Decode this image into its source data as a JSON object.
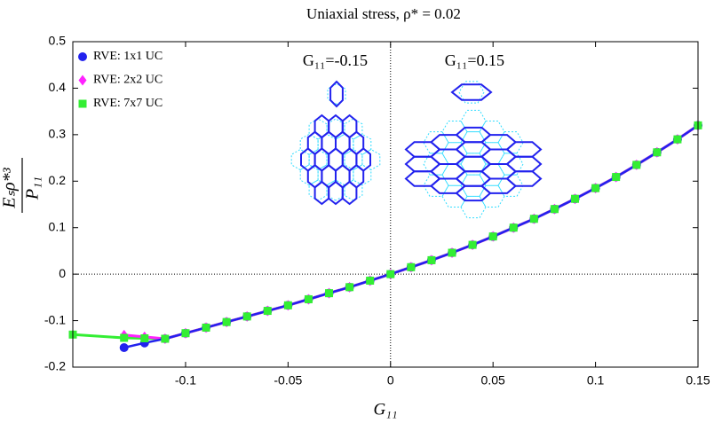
{
  "chart_data": {
    "type": "line",
    "title": "Uniaxial stress,  ρ* = 0.02",
    "xlabel": "G₁₁",
    "ylabel": {
      "numerator": "P₁₁",
      "denominator": "Eₛρ*³"
    },
    "xlim": [
      -0.155,
      0.15
    ],
    "xticks": [
      -0.1,
      -0.05,
      0,
      0.05,
      0.1,
      0.15
    ],
    "ylim": [
      -0.2,
      0.5
    ],
    "yticks": [
      -0.2,
      -0.1,
      0,
      0.1,
      0.2,
      0.3,
      0.4,
      0.5
    ],
    "zero_lines": true,
    "legend": "upper left",
    "annotations": [
      {
        "text": "G₁₁=-0.15",
        "x": -0.027
      },
      {
        "text": "G₁₁=0.15",
        "x": 0.041
      }
    ],
    "series": [
      {
        "name": "RVE: 1x1 UC",
        "color": "#2222ee",
        "marker": "circle",
        "x": [
          -0.13,
          -0.12,
          -0.11,
          -0.1,
          -0.09,
          -0.08,
          -0.07,
          -0.06,
          -0.05,
          -0.04,
          -0.03,
          -0.02,
          -0.01,
          0,
          0.01,
          0.02,
          0.03,
          0.04,
          0.05,
          0.06,
          0.07,
          0.08,
          0.09,
          0.1,
          0.11,
          0.12,
          0.13,
          0.14,
          0.15
        ],
        "values": [
          -0.158,
          -0.148,
          -0.139,
          -0.127,
          -0.115,
          -0.103,
          -0.091,
          -0.079,
          -0.067,
          -0.054,
          -0.041,
          -0.028,
          -0.014,
          0,
          0.015,
          0.03,
          0.046,
          0.063,
          0.081,
          0.1,
          0.119,
          0.14,
          0.162,
          0.185,
          0.209,
          0.235,
          0.262,
          0.29,
          0.32
        ]
      },
      {
        "name": "RVE: 2x2 UC",
        "color": "#ff22ff",
        "marker": "diamond",
        "x": [
          -0.13,
          -0.12,
          -0.11,
          -0.1,
          -0.09,
          -0.08,
          -0.07,
          -0.06,
          -0.05,
          -0.04,
          -0.03,
          -0.02,
          -0.01,
          0,
          0.01,
          0.02,
          0.03,
          0.04,
          0.05,
          0.06,
          0.07,
          0.08,
          0.09,
          0.1,
          0.11,
          0.12,
          0.13,
          0.14,
          0.15
        ],
        "values": [
          -0.131,
          -0.135,
          -0.139,
          -0.127,
          -0.115,
          -0.103,
          -0.091,
          -0.079,
          -0.067,
          -0.054,
          -0.041,
          -0.028,
          -0.014,
          0,
          0.015,
          0.03,
          0.046,
          0.063,
          0.081,
          0.1,
          0.119,
          0.14,
          0.162,
          0.185,
          0.209,
          0.235,
          0.262,
          0.29,
          0.32
        ]
      },
      {
        "name": "RVE: 7x7 UC",
        "color": "#33ee33",
        "marker": "square",
        "x": [
          -0.155,
          -0.13,
          -0.12,
          -0.11,
          -0.1,
          -0.09,
          -0.08,
          -0.07,
          -0.06,
          -0.05,
          -0.04,
          -0.03,
          -0.02,
          -0.01,
          0,
          0.01,
          0.02,
          0.03,
          0.04,
          0.05,
          0.06,
          0.07,
          0.08,
          0.09,
          0.1,
          0.11,
          0.12,
          0.13,
          0.14,
          0.15
        ],
        "values": [
          -0.13,
          -0.137,
          -0.138,
          -0.139,
          -0.127,
          -0.115,
          -0.103,
          -0.091,
          -0.079,
          -0.067,
          -0.054,
          -0.041,
          -0.028,
          -0.014,
          0,
          0.015,
          0.03,
          0.046,
          0.063,
          0.081,
          0.1,
          0.119,
          0.14,
          0.162,
          0.185,
          0.209,
          0.235,
          0.262,
          0.29,
          0.32
        ]
      }
    ]
  }
}
